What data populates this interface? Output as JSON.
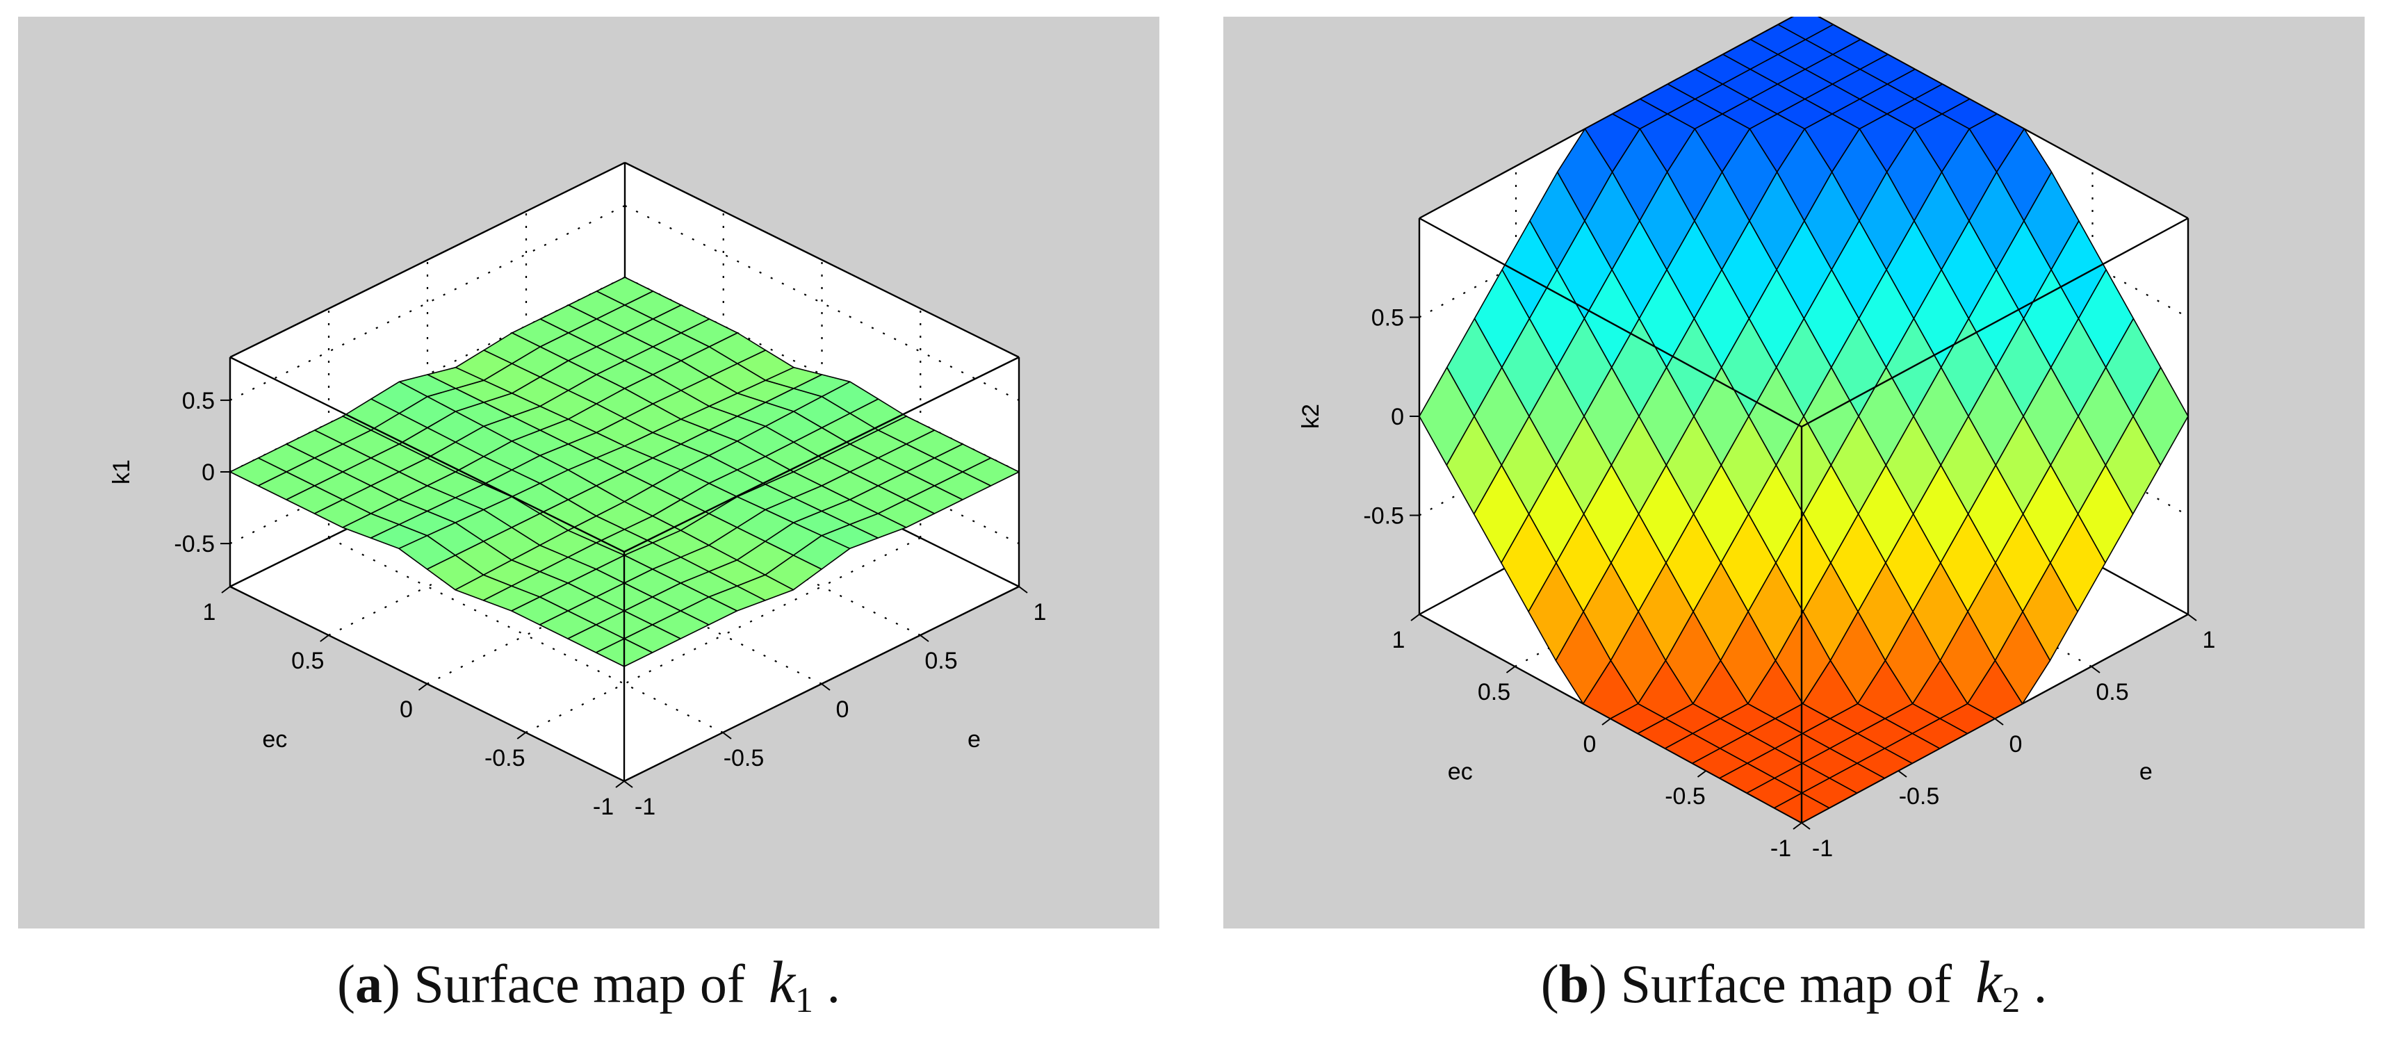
{
  "chart_data": [
    {
      "type": "surface",
      "zlabel": "k1",
      "xlabel": "e",
      "ylabel": "ec",
      "x_range": [
        -1,
        1
      ],
      "y_range": [
        -1,
        1
      ],
      "z_range": [
        -0.8,
        0.8
      ],
      "x_ticks": [
        "-1",
        "-0.5",
        "0",
        "0.5",
        "1"
      ],
      "y_ticks": [
        "-1",
        "-0.5",
        "0",
        "0.5",
        "1"
      ],
      "z_ticks": [
        "-0.5",
        "0",
        "0.5"
      ],
      "grid": true,
      "colormap": "jet",
      "caption": {
        "label": "a",
        "text": ") Surface map of",
        "var": "k",
        "sub": "1",
        "end": "."
      }
    },
    {
      "type": "surface",
      "zlabel": "k2",
      "xlabel": "e",
      "ylabel": "ec",
      "x_range": [
        -1,
        1
      ],
      "y_range": [
        -1,
        1
      ],
      "z_range": [
        -1,
        1
      ],
      "x_ticks": [
        "-1",
        "-0.5",
        "0",
        "0.5",
        "1"
      ],
      "y_ticks": [
        "-1",
        "-0.5",
        "0",
        "0.5",
        "1"
      ],
      "z_ticks": [
        "-0.5",
        "0",
        "0.5"
      ],
      "grid": true,
      "colormap": "jet",
      "caption": {
        "label": "b",
        "text": ") Surface map of",
        "var": "k",
        "sub": "2",
        "end": "."
      }
    }
  ]
}
